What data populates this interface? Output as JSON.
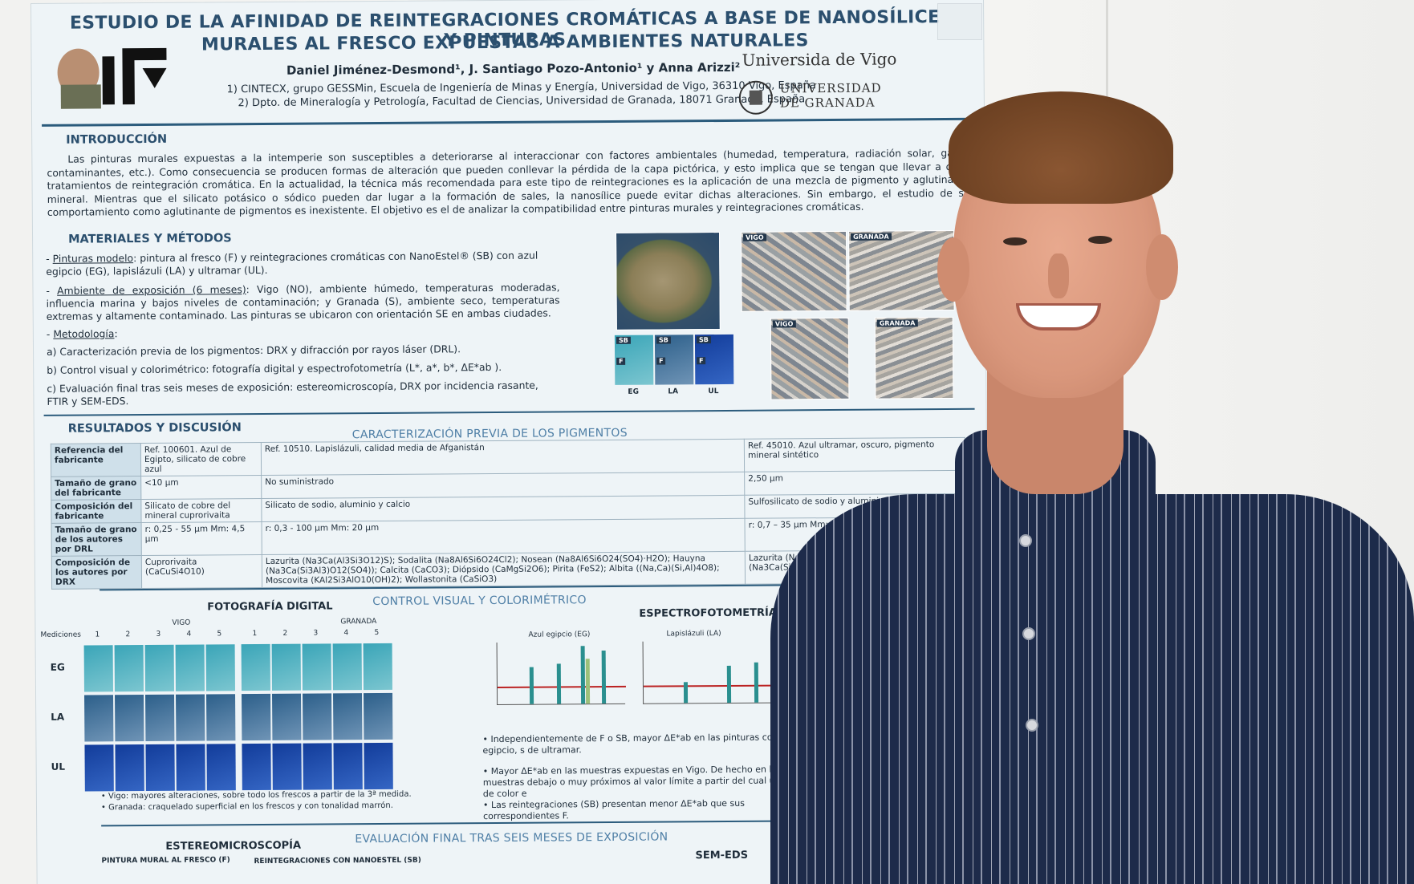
{
  "poster": {
    "title_line1": "ESTUDIO DE LA AFINIDAD DE REINTEGRACIONES CROMÁTICAS A BASE DE NANOSÍLICE Y PINTURAS",
    "title_line2": "MURALES AL FRESCO EXPUESTAS A AMBIENTES NATURALES",
    "authors": "Daniel Jiménez-Desmond¹, J. Santiago Pozo-Antonio¹ y Anna Arizzi²",
    "affiliation1": "1) CINTECX, grupo GESSMin, Escuela de Ingeniería de Minas y Energía, Universidad de Vigo, 36310 Vigo, España",
    "affiliation2": "2) Dpto. de Mineralogía y Petrología, Facultad de Ciencias, Universidad de Granada, 18071 Granada, España",
    "logo_univ_vigo": "Universida de Vigo",
    "logo_univ_granada_1": "UNIVERSIDAD",
    "logo_univ_granada_2": "DE GRANADA",
    "intro_heading": "INTRODUCCIÓN",
    "intro_text": "Las pinturas murales expuestas a la intemperie son susceptibles a deteriorarse al interaccionar con factores ambientales (humedad, temperatura, radiación solar, gases contaminantes, etc.). Como consecuencia se producen formas de alteración que pueden conllevar la pérdida de la capa pictórica, y esto implica que se tengan que llevar a cabo tratamientos de reintegración cromática. En la actualidad, la técnica más recomendada para este tipo de reintegraciones es la aplicación de una mezcla de pigmento y aglutinante mineral. Mientras que el silicato potásico o sódico pueden dar lugar a la formación de sales, la nanosílice puede evitar dichas alteraciones. Sin embargo, el estudio de su comportamiento como aglutinante de pigmentos es inexistente. El objetivo es el de analizar la compatibilidad entre pinturas murales y reintegraciones cromáticas.",
    "methods_heading": "MATERIALES Y MÉTODOS",
    "methods_1_label": "Pinturas modelo",
    "methods_1_text": ": pintura al fresco (F) y reintegraciones cromáticas con NanoEstel® (SB) con azul egipcio (EG), lapislázuli (LA) y ultramar (UL).",
    "methods_2_label": "Ambiente de exposición (6 meses)",
    "methods_2_text": ": Vigo (NO), ambiente húmedo, temperaturas moderadas, influencia marina y bajos niveles de contaminación; y Granada (S), ambiente seco, temperaturas extremas y altamente contaminado. Las pinturas se ubicaron con orientación SE en ambas ciudades.",
    "methods_3_label": "Metodología",
    "methods_a": "a)  Caracterización previa de los pigmentos: DRX y difracción por rayos láser (DRL).",
    "methods_b": "b)  Control visual y colorimétrico: fotografía digital y espectrofotometría (L*, a*, b*, ΔE*ab ).",
    "methods_c": "c)  Evaluación final tras seis meses de exposición: estereomicroscopía, DRX por incidencia rasante, FTIR y SEM-EDS.",
    "map_labels": {
      "vigo": "VIGO",
      "granada": "GRANADA"
    },
    "swatch_labels": {
      "sb": "SB",
      "f": "F",
      "eg": "EG",
      "la": "LA",
      "ul": "UL"
    },
    "results_heading": "RESULTADOS Y DISCUSIÓN",
    "pigments_subheading": "CARACTERIZACIÓN PREVIA DE LOS PIGMENTOS",
    "table": {
      "rows": [
        {
          "head": "Referencia del fabricante",
          "eg": "Ref. 100601. Azul de Egipto, silicato de cobre azul",
          "la": "Ref. 10510. Lapislázuli, calidad media de Afganistán",
          "ul": "Ref. 45010. Azul ultramar, oscuro, pigmento mineral sintético"
        },
        {
          "head": "Tamaño de grano del fabricante",
          "eg": "<10 µm",
          "la": "No suministrado",
          "ul": "2,50 µm"
        },
        {
          "head": "Composición del fabricante",
          "eg": "Silicato de cobre del mineral cuprorivaita",
          "la": "Silicato de sodio, aluminio y calcio",
          "ul": "Sulfosilicato de sodio y aluminio"
        },
        {
          "head": "Tamaño de grano de los autores por DRL",
          "eg": "r: 0,25 - 55 µm  Mm: 4,5 µm",
          "la": "r: 0,3 - 100 µm  Mm: 20 µm",
          "ul": "r: 0,7 – 35 µm  Mm: 2,5 (25) µm"
        },
        {
          "head": "Composición de los autores por DRX",
          "eg": "Cuprorivaita (CaCuSi4O10)",
          "la": "Lazurita (Na3Ca(Al3Si3O12)S); Sodalita (Na8Al6Si6O24Cl2); Nosean (Na8Al6Si6O24(SO4)·H2O); Hauyna (Na3Ca(Si3Al3)O12(SO4)); Calcita (CaCO3); Diópsido (CaMgSi2O6); Pirita (FeS2); Albita ((Na,Ca)(Si,Al)4O8); Moscovita (KAl2Si3AlO10(OH)2); Wollastonita (CaSiO3)",
          "ul": "Lazurita (Na3Ca(Al3Si3O12)S); Sodalita (Na8Al (Na3Ca(Si3Al3)O12(SO4)); Nefelina (NaAlSiO4)"
        }
      ]
    },
    "control_subheading": "CONTROL VISUAL Y COLORIMÉTRICO",
    "photo_heading": "FOTOGRAFÍA DIGITAL",
    "photo_vigo": "VIGO",
    "photo_granada": "GRANADA",
    "photo_mediciones": "Mediciones",
    "photo_cols": [
      "1",
      "2",
      "3",
      "4",
      "5"
    ],
    "photo_rows": [
      "EG",
      "LA",
      "UL"
    ],
    "photo_note1": "Vigo: mayores alteraciones, sobre todo los frescos a partir de la 3ª medida.",
    "photo_note2": "Granada: craquelado superficial en los frescos y con tonalidad marrón.",
    "spectro_heading": "ESPECTROFOTOMETRÍA¹",
    "chart1_title": "Azul egipcio (EG)",
    "chart2_title": "Lapislázuli (LA)",
    "spectro_b1": "Independientemente de F o SB, mayor ΔE*ab en las pinturas con azul egipcio, s de ultramar.",
    "spectro_b2": "Mayor ΔE*ab en las muestras expuestas en Vigo. De hecho en las muestras debajo o muy próximos al valor límite a partir del cual un cambio de color e",
    "spectro_b3": "Las reintegraciones (SB) presentan menor ΔE*ab que sus correspondientes F.",
    "final_subheading": "EVALUACIÓN FINAL TRAS SEIS MESES DE EXPOSICIÓN",
    "stereo_heading": "ESTEREOMICROSCOPÍA",
    "stereo_f": "PINTURA MURAL AL FRESCO (F)",
    "stereo_sb": "REINTEGRACIONES CON NANOESTEL (SB)",
    "semeds_heading": "SEM-EDS"
  },
  "colors": {
    "poster_bg": "#eef4f7",
    "heading": "#2b4f6e",
    "accent": "#2b5b7c",
    "skin": "#d9977c",
    "hair": "#7a4a2a",
    "shirt": "#1d2b4a"
  }
}
